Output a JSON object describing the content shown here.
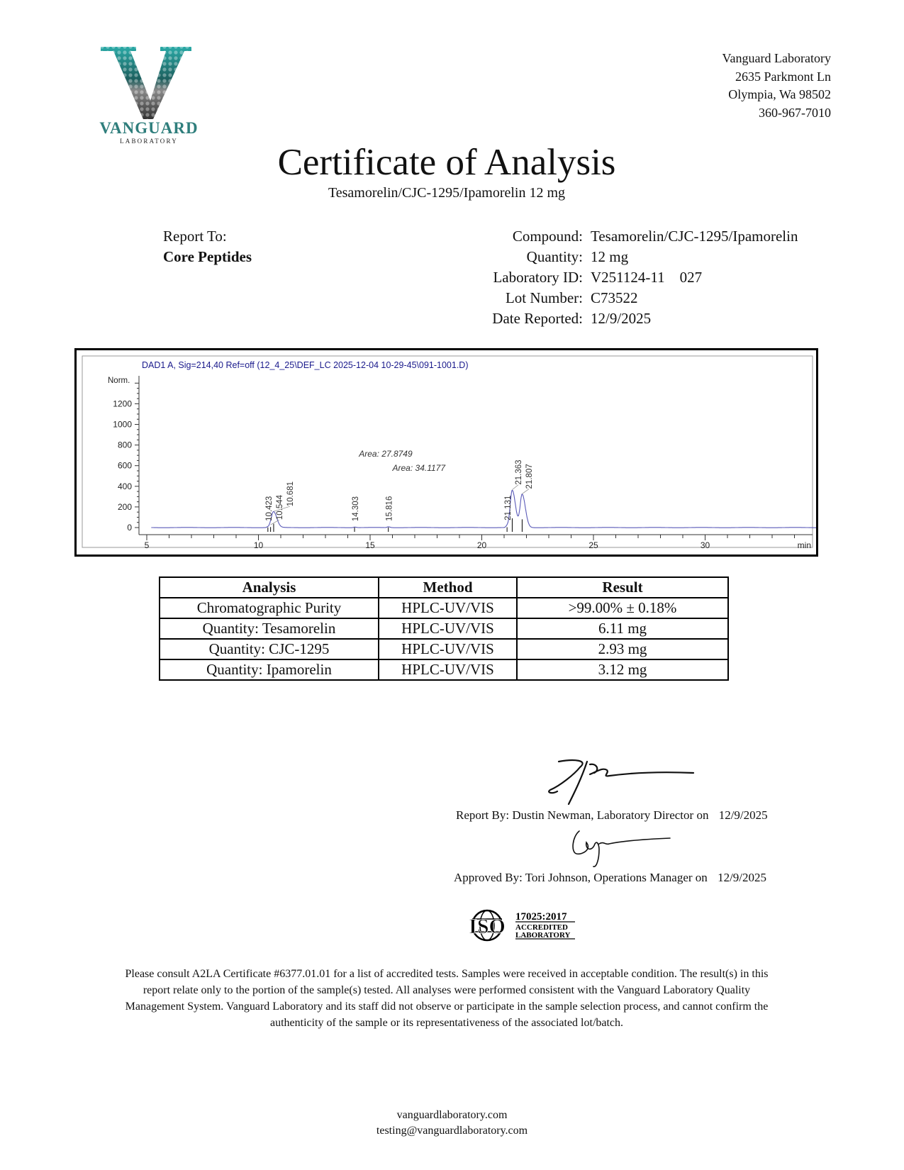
{
  "logo": {
    "letter": "V",
    "name": "VANGUARD",
    "sub": "LABORATORY",
    "colors": [
      "#2aa9a6",
      "#9a9a9a",
      "#111111"
    ]
  },
  "address": {
    "name": "Vanguard Laboratory",
    "street": "2635 Parkmont Ln",
    "city": "Olympia, Wa 98502",
    "phone": "360-967-7010"
  },
  "title": "Certificate of Analysis",
  "subtitle": "Tesamorelin/CJC-1295/Ipamorelin 12 mg",
  "report_to": {
    "label": "Report To:",
    "client": "Core Peptides"
  },
  "info": [
    {
      "label": "Compound:",
      "value": "Tesamorelin/CJC-1295/Ipamorelin"
    },
    {
      "label": "Quantity:",
      "value": "12 mg"
    },
    {
      "label": "Laboratory ID:",
      "value": "V251124-11    027"
    },
    {
      "label": "Lot Number:",
      "value": "C73522"
    },
    {
      "label": "Date Reported:",
      "value": "12/9/2025"
    }
  ],
  "chart_data": {
    "type": "line",
    "title": "DAD1 A, Sig=214,40 Ref=off (12_4_25\\DEF_LC 2025-12-04 10-29-45\\091-1001.D)",
    "ylabel": "Norm.",
    "xlabel": "min",
    "xlim": [
      5,
      35
    ],
    "ylim": [
      -50,
      1450
    ],
    "xticks": [
      5,
      10,
      15,
      20,
      25,
      30
    ],
    "yticks": [
      0,
      200,
      400,
      600,
      800,
      1000,
      1200
    ],
    "line_color": "#5a5ab8",
    "title_color": "#1a1a8c",
    "peaks": [
      {
        "rt": 10.423,
        "label": "10.423",
        "height": 8
      },
      {
        "rt": 10.544,
        "label": "10.544",
        "height": 20
      },
      {
        "rt": 10.681,
        "label": "10.681",
        "height": 150
      },
      {
        "rt": 14.303,
        "label": "14.303",
        "height": 6
      },
      {
        "rt": 15.816,
        "label": "15.816",
        "height": 8
      },
      {
        "rt": 21.131,
        "label": "21.131",
        "height": 15
      },
      {
        "rt": 21.363,
        "label": "21.363",
        "height": 360
      },
      {
        "rt": 21.807,
        "label": "21.807",
        "height": 320
      }
    ],
    "annotations": [
      {
        "x": 14.5,
        "text": "Area: 27.8749"
      },
      {
        "x": 16.0,
        "text": "Area: 34.1177"
      }
    ]
  },
  "table": {
    "headers": [
      "Analysis",
      "Method",
      "Result"
    ],
    "rows": [
      [
        "Chromatographic Purity",
        "HPLC-UV/VIS",
        ">99.00% ± 0.18%"
      ],
      [
        "Quantity: Tesamorelin",
        "HPLC-UV/VIS",
        "6.11 mg"
      ],
      [
        "Quantity: CJC-1295",
        "HPLC-UV/VIS",
        "2.93 mg"
      ],
      [
        "Quantity: Ipamorelin",
        "HPLC-UV/VIS",
        "3.12 mg"
      ]
    ]
  },
  "signatures": {
    "report_by": "Report By: Dustin Newman, Laboratory Director on",
    "report_date": "12/9/2025",
    "approved_by": "Approved By: Tori Johnson, Operations Manager on",
    "approved_date": "12/9/2025"
  },
  "iso": {
    "mark": "ISO",
    "standard": "17025:2017",
    "line1": "ACCREDITED",
    "line2": "LABORATORY"
  },
  "disclaimer": [
    "Please consult A2LA Certificate #6377.01.01 for a list of accredited tests. Samples were received in acceptable condition. The result(s) in this",
    "report relate only to the portion of the sample(s) tested. All analyses were performed consistent with the Vanguard Laboratory Quality",
    "Management System. Vanguard Laboratory and its staff did not observe or participate in the sample selection process, and cannot confirm the",
    "authenticity of the sample or its representativeness of the associated lot/batch."
  ],
  "footer": {
    "website": "vanguardlaboratory.com",
    "email": "testing@vanguardlaboratory.com"
  }
}
